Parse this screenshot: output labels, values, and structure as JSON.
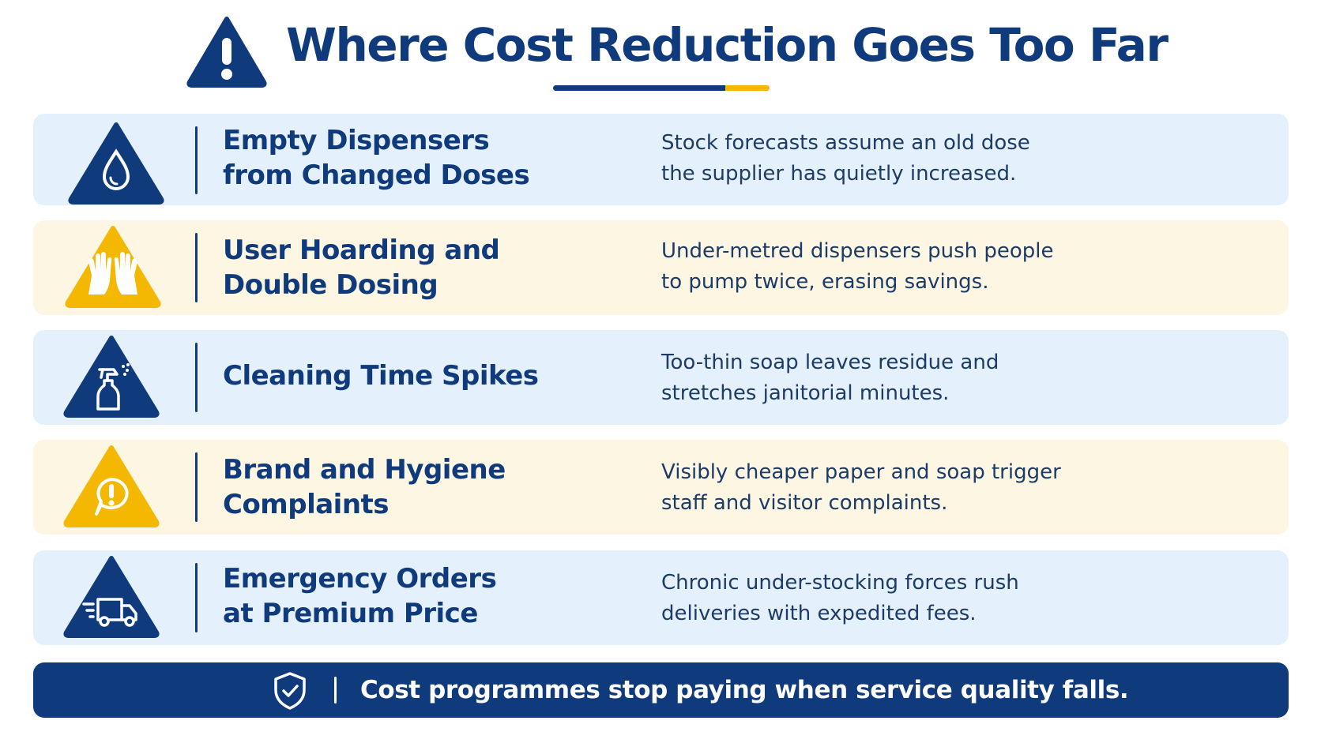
{
  "header": {
    "title": "Where Cost Reduction Goes Too Far",
    "icon": "warning-icon"
  },
  "colors": {
    "navy": "#0f3a7c",
    "gold": "#f4b800",
    "light_blue_card": "#e4f0fb",
    "light_yellow_card": "#fdf6e3"
  },
  "items": [
    {
      "title_lines": [
        "Empty Dispensers",
        "from Changed Doses"
      ],
      "description_lines": [
        "Stock forecasts assume an old dose",
        "the supplier has quietly increased."
      ],
      "icon": "water-drop-icon",
      "theme": "blue"
    },
    {
      "title_lines": [
        "User Hoarding and",
        "Double Dosing"
      ],
      "description_lines": [
        "Under-metred dispensers push people",
        "to pump twice, erasing savings."
      ],
      "icon": "hands-icon",
      "theme": "yellow"
    },
    {
      "title_lines": [
        "Cleaning Time Spikes"
      ],
      "description_lines": [
        "Too-thin soap leaves residue and",
        "stretches janitorial minutes."
      ],
      "icon": "spray-bottle-icon",
      "theme": "blue"
    },
    {
      "title_lines": [
        "Brand and Hygiene",
        "Complaints"
      ],
      "description_lines": [
        "Visibly cheaper paper and soap trigger",
        "staff and visitor complaints."
      ],
      "icon": "complaint-bubble-icon",
      "theme": "yellow"
    },
    {
      "title_lines": [
        "Emergency Orders",
        "at Premium Price"
      ],
      "description_lines": [
        "Chronic under-stocking forces rush",
        "deliveries with expedited fees."
      ],
      "icon": "delivery-truck-icon",
      "theme": "blue"
    }
  ],
  "footer": {
    "message": "Cost programmes stop paying when service quality falls.",
    "icon": "shield-check-icon"
  }
}
